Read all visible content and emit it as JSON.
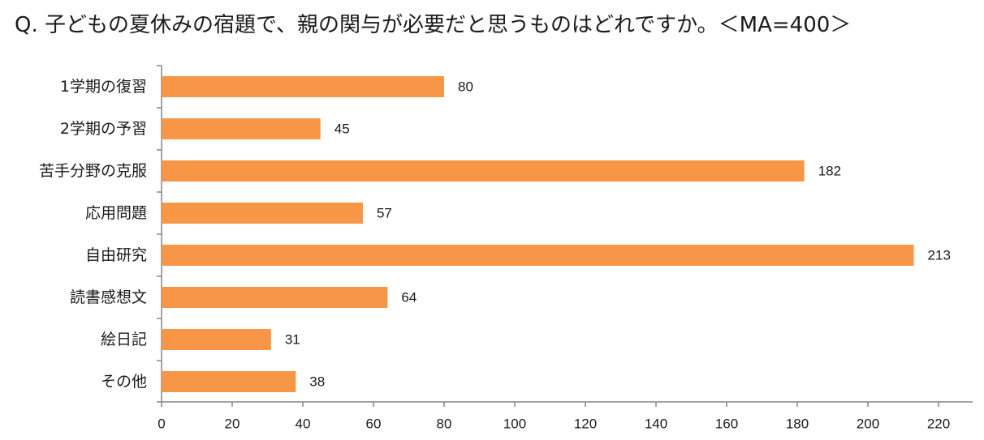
{
  "title": "Q. 子どもの夏休みの宿題で、親の関与が必要だと思うものはどれですか。＜MA=400＞",
  "colors": {
    "bar": "#F79646",
    "axis": "#868686",
    "text": "#1a1a1a"
  },
  "chart_data": {
    "type": "bar",
    "orientation": "horizontal",
    "title": "Q. 子どもの夏休みの宿題で、親の関与が必要だと思うものはどれですか。＜MA=400＞",
    "categories": [
      "1学期の復習",
      "2学期の予習",
      "苦手分野の克服",
      "応用問題",
      "自由研究",
      "読書感想文",
      "絵日記",
      "その他"
    ],
    "values": [
      80,
      45,
      182,
      57,
      213,
      64,
      31,
      38
    ],
    "xlim": [
      0,
      220
    ],
    "ticks": [
      0,
      20,
      40,
      60,
      80,
      100,
      120,
      140,
      160,
      180,
      200,
      220
    ],
    "xlabel": "",
    "ylabel": "",
    "grid": false,
    "data_labels": true
  }
}
